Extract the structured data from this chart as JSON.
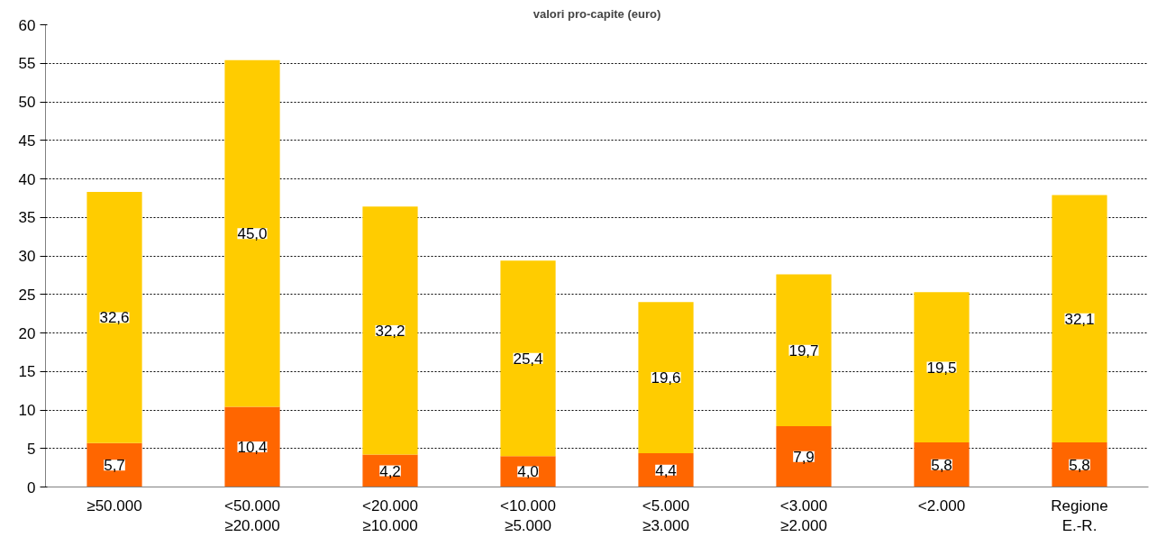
{
  "chart_data": {
    "type": "bar",
    "title": "valori pro-capite (euro)",
    "categories": [
      "≥50.000",
      "<50.000\n≥20.000",
      "<20.000\n≥10.000",
      "<10.000\n≥5.000",
      "<5.000\n≥3.000",
      "<3.000\n≥2.000",
      "<2.000",
      "Regione\nE.-R."
    ],
    "stacked": true,
    "series": [
      {
        "color": "#ff6600",
        "values": [
          5.7,
          10.4,
          4.2,
          4.0,
          4.4,
          7.9,
          5.8,
          5.8
        ],
        "value_labels": [
          "5,7",
          "10,4",
          "4,2",
          "4,0",
          "4,4",
          "7,9",
          "5,8",
          "5,8"
        ]
      },
      {
        "color": "#ffcc00",
        "values": [
          32.6,
          45.0,
          32.2,
          25.4,
          19.6,
          19.7,
          19.5,
          32.1
        ],
        "value_labels": [
          "32,6",
          "45,0",
          "32,2",
          "25,4",
          "19,6",
          "19,7",
          "19,5",
          "32,1"
        ]
      }
    ],
    "ylim": [
      0,
      60
    ],
    "yticks": [
      0,
      5,
      10,
      15,
      20,
      25,
      30,
      35,
      40,
      45,
      50,
      55,
      60
    ],
    "grid": "y"
  }
}
